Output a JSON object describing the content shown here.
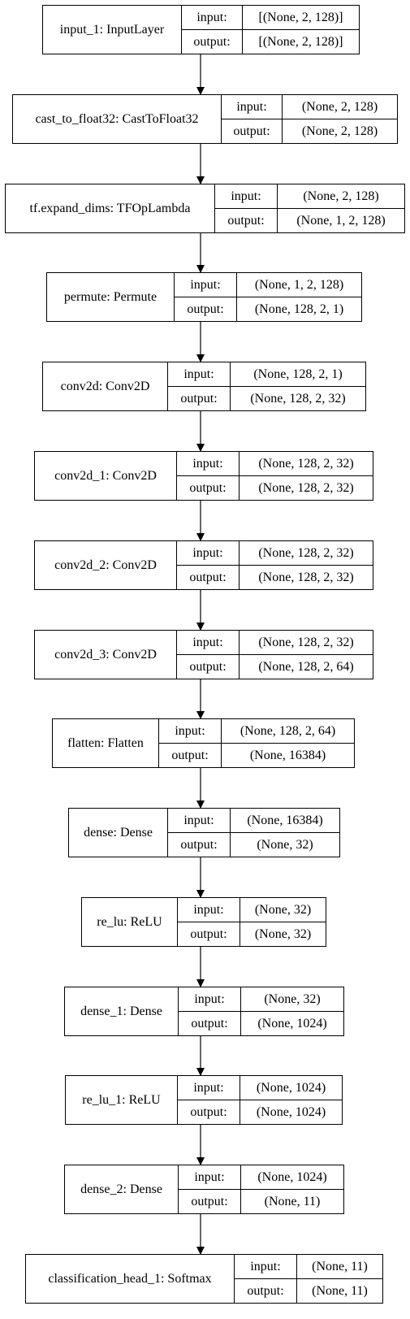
{
  "labels": {
    "input": "input:",
    "output": "output:"
  },
  "layers": [
    {
      "name": "input_1: InputLayer",
      "input": "[(None, 2, 128)]",
      "output": "[(None, 2, 128)]"
    },
    {
      "name": "cast_to_float32: CastToFloat32",
      "input": "(None, 2, 128)",
      "output": "(None, 2, 128)"
    },
    {
      "name": "tf.expand_dims: TFOpLambda",
      "input": "(None, 2, 128)",
      "output": "(None, 1, 2, 128)"
    },
    {
      "name": "permute: Permute",
      "input": "(None, 1, 2, 128)",
      "output": "(None, 128, 2, 1)"
    },
    {
      "name": "conv2d: Conv2D",
      "input": "(None, 128, 2, 1)",
      "output": "(None, 128, 2, 32)"
    },
    {
      "name": "conv2d_1: Conv2D",
      "input": "(None, 128, 2, 32)",
      "output": "(None, 128, 2, 32)"
    },
    {
      "name": "conv2d_2: Conv2D",
      "input": "(None, 128, 2, 32)",
      "output": "(None, 128, 2, 32)"
    },
    {
      "name": "conv2d_3: Conv2D",
      "input": "(None, 128, 2, 32)",
      "output": "(None, 128, 2, 64)"
    },
    {
      "name": "flatten: Flatten",
      "input": "(None, 128, 2, 64)",
      "output": "(None, 16384)"
    },
    {
      "name": "dense: Dense",
      "input": "(None, 16384)",
      "output": "(None, 32)"
    },
    {
      "name": "re_lu: ReLU",
      "input": "(None, 32)",
      "output": "(None, 32)"
    },
    {
      "name": "dense_1: Dense",
      "input": "(None, 32)",
      "output": "(None, 1024)"
    },
    {
      "name": "re_lu_1: ReLU",
      "input": "(None, 1024)",
      "output": "(None, 1024)"
    },
    {
      "name": "dense_2: Dense",
      "input": "(None, 1024)",
      "output": "(None, 11)"
    },
    {
      "name": "classification_head_1: Softmax",
      "input": "(None, 11)",
      "output": "(None, 11)"
    }
  ]
}
